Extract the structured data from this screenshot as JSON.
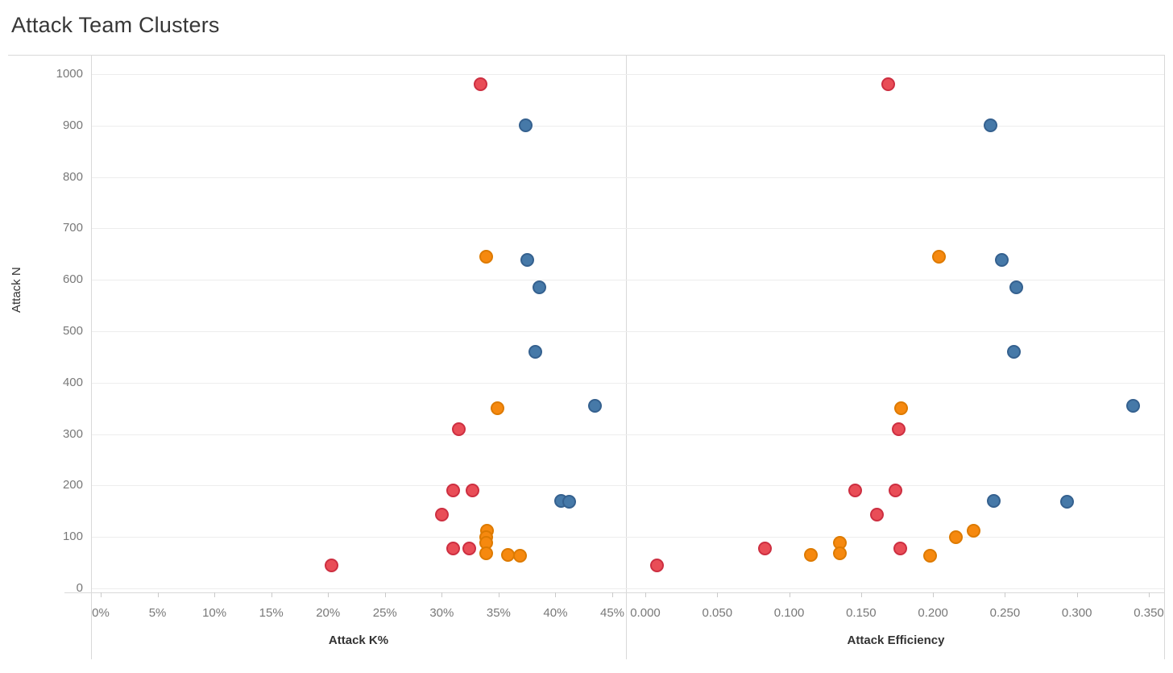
{
  "chart_data": {
    "type": "scatter",
    "title": "Attack Team Clusters",
    "ylabel": "Attack N",
    "ylim": [
      0,
      1000
    ],
    "grid": "horizontal",
    "legend": "none",
    "y_tick_values": [
      0,
      100,
      200,
      300,
      400,
      500,
      600,
      700,
      800,
      900,
      1000
    ],
    "y_tick_labels": [
      "0",
      "100",
      "200",
      "300",
      "400",
      "500",
      "600",
      "700",
      "800",
      "900",
      "1000"
    ],
    "panels": [
      {
        "xlabel": "Attack K%",
        "x_key": "k",
        "xlim": [
          0,
          45
        ],
        "x_tick_values": [
          0,
          5,
          10,
          15,
          20,
          25,
          30,
          35,
          40,
          45
        ],
        "x_tick_labels": [
          "0%",
          "5%",
          "10%",
          "15%",
          "20%",
          "25%",
          "30%",
          "35%",
          "40%",
          "45%"
        ]
      },
      {
        "xlabel": "Attack Efficiency",
        "x_key": "eff",
        "xlim": [
          0,
          0.35
        ],
        "x_tick_values": [
          0,
          0.05,
          0.1,
          0.15,
          0.2,
          0.25,
          0.3,
          0.35
        ],
        "x_tick_labels": [
          "0.000",
          "0.050",
          "0.100",
          "0.150",
          "0.200",
          "0.250",
          "0.300",
          "0.350"
        ]
      }
    ],
    "series": [
      {
        "name": "blue-cluster",
        "fill": "#4679a8",
        "stroke": "#35618f",
        "points": [
          {
            "k": 37.4,
            "eff": 0.24,
            "n": 900
          },
          {
            "k": 37.5,
            "eff": 0.248,
            "n": 638
          },
          {
            "k": 38.6,
            "eff": 0.258,
            "n": 585
          },
          {
            "k": 38.2,
            "eff": 0.256,
            "n": 460
          },
          {
            "k": 43.5,
            "eff": 0.339,
            "n": 355
          },
          {
            "k": 40.5,
            "eff": 0.242,
            "n": 170
          },
          {
            "k": 41.2,
            "eff": 0.293,
            "n": 168
          }
        ]
      },
      {
        "name": "red-cluster",
        "fill": "#e94d57",
        "stroke": "#cd2f41",
        "points": [
          {
            "k": 33.4,
            "eff": 0.169,
            "n": 980
          },
          {
            "k": 31.5,
            "eff": 0.176,
            "n": 310
          },
          {
            "k": 31.0,
            "eff": 0.146,
            "n": 190
          },
          {
            "k": 32.7,
            "eff": 0.174,
            "n": 190
          },
          {
            "k": 30.0,
            "eff": 0.161,
            "n": 143
          },
          {
            "k": 31.0,
            "eff": 0.083,
            "n": 78
          },
          {
            "k": 32.4,
            "eff": 0.177,
            "n": 78
          },
          {
            "k": 20.3,
            "eff": 0.008,
            "n": 45
          }
        ]
      },
      {
        "name": "orange-cluster",
        "fill": "#f6890f",
        "stroke": "#dd7a00",
        "points": [
          {
            "k": 33.9,
            "eff": 0.204,
            "n": 645
          },
          {
            "k": 34.9,
            "eff": 0.178,
            "n": 350
          },
          {
            "k": 34.0,
            "eff": 0.228,
            "n": 112
          },
          {
            "k": 33.9,
            "eff": 0.216,
            "n": 100
          },
          {
            "k": 33.9,
            "eff": 0.135,
            "n": 88
          },
          {
            "k": 33.9,
            "eff": 0.135,
            "n": 68
          },
          {
            "k": 35.8,
            "eff": 0.115,
            "n": 65
          },
          {
            "k": 36.9,
            "eff": 0.198,
            "n": 63
          }
        ]
      }
    ]
  }
}
